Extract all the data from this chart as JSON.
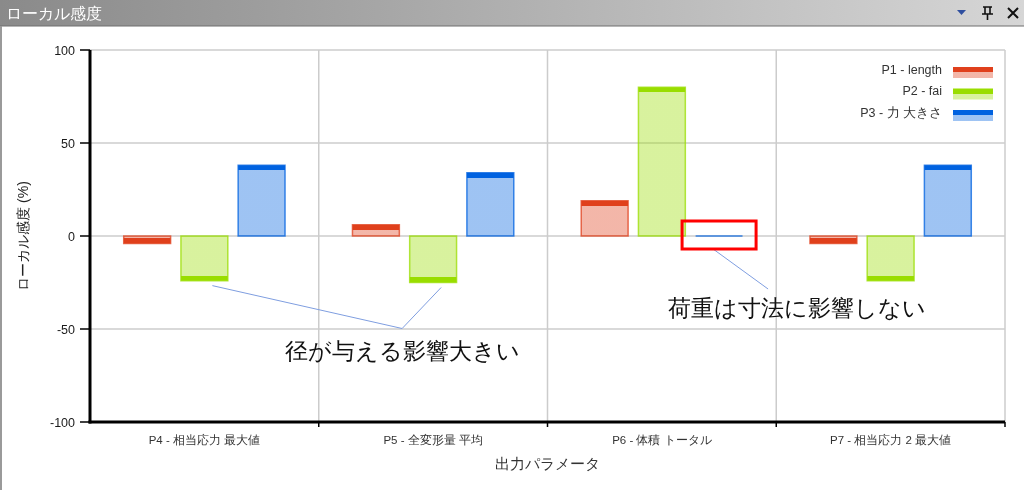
{
  "chart_data": {
    "type": "bar",
    "title": "ローカル感度",
    "xlabel": "出力パラメータ",
    "ylabel": "ローカル感度 (%)",
    "categories": [
      "P4 - 相当応力 最大値",
      "P5 - 全変形量 平均",
      "P6 - 体積 トータル",
      "P7 - 相当応力 2 最大値"
    ],
    "series": [
      {
        "name": "P1 - length",
        "color": "#e0401c",
        "values": [
          -4,
          6,
          19,
          -4
        ]
      },
      {
        "name": "P2 - fai",
        "color": "#99dd00",
        "values": [
          -24,
          -25,
          80,
          -24
        ]
      },
      {
        "name": "P3 - 力 大きさ",
        "color": "#0062e0",
        "values": [
          38,
          34,
          0,
          38
        ]
      }
    ],
    "ylim": [
      -100,
      100
    ],
    "yticks": [
      -100,
      -50,
      0,
      50,
      100
    ],
    "grid": true,
    "legend": "top right",
    "annotations": [
      {
        "text": "径が与える影響大きい",
        "x": "P5 - 全変形量 平均",
        "y": -25
      },
      {
        "text": "荷重は寸法に影響しない",
        "x": "P6 - 体積 トータル",
        "y": 0
      }
    ]
  }
}
